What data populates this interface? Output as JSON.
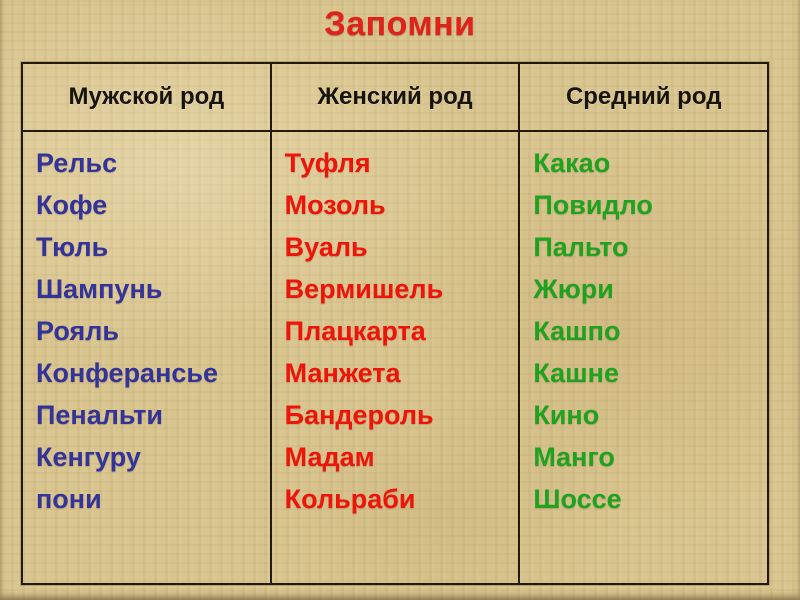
{
  "title": "Запомни",
  "colors": {
    "title": "#e0221a",
    "masculine": "#333399",
    "feminine": "#ee1409",
    "neuter": "#1fa21f",
    "header_text": "#17130d",
    "table_border": "#221a0e",
    "background": "#d9c58f"
  },
  "table": {
    "columns": [
      {
        "header": "Мужской род",
        "gender": "masculine",
        "items": [
          "Рельс",
          "Кофе",
          "Тюль",
          "Шампунь",
          "Рояль",
          "Конферансье",
          "Пенальти",
          "Кенгуру",
          "пони"
        ]
      },
      {
        "header": "Женский род",
        "gender": "feminine",
        "items": [
          "Туфля",
          "Мозоль",
          "Вуаль",
          "Вермишель",
          "Плацкарта",
          "Манжета",
          "Бандероль",
          "Мадам",
          "Кольраби"
        ]
      },
      {
        "header": "Средний род",
        "gender": "neuter",
        "items": [
          "Какао",
          "Повидло",
          "Пальто",
          "Жюри",
          "Кашпо",
          "Кашне",
          "Кино",
          "Манго",
          "Шоссе"
        ]
      }
    ]
  }
}
